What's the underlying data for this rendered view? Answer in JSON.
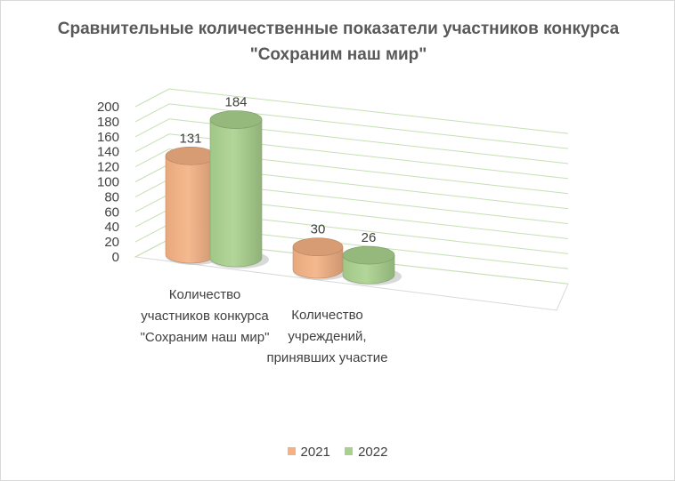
{
  "chart_data": {
    "type": "bar",
    "title": "Сравнительные количественные показатели участников конкурса \"Сохраним наш мир\"",
    "categories": [
      "Количество участников конкурса \"Сохраним наш мир\"",
      "Количество учреждений, принявших участие"
    ],
    "series": [
      {
        "name": "2021",
        "values": [
          131,
          30
        ],
        "color": "#F4B183"
      },
      {
        "name": "2022",
        "values": [
          184,
          26
        ],
        "color": "#A9D18E"
      }
    ],
    "yticks": [
      "0",
      "20",
      "40",
      "60",
      "80",
      "100",
      "120",
      "140",
      "160",
      "180",
      "200"
    ],
    "ylim": [
      0,
      200
    ],
    "grid": true,
    "gridline_color": "#C5E0B4",
    "legend_position": "bottom",
    "style": "3d-cylinder"
  }
}
